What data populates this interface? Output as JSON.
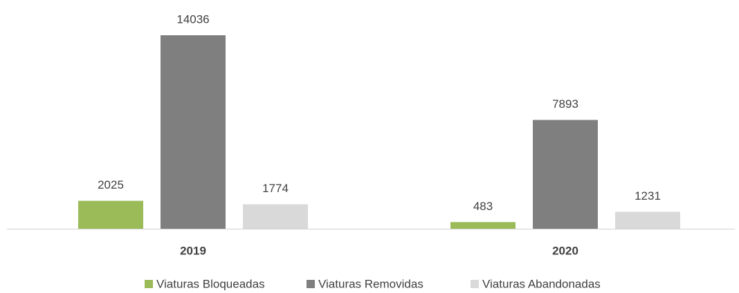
{
  "chart_data": {
    "type": "bar",
    "categories": [
      "2019",
      "2020"
    ],
    "series": [
      {
        "name": "Viaturas Bloqueadas",
        "color": "#9bbb59",
        "values": [
          2025,
          483
        ]
      },
      {
        "name": "Viaturas Removidas",
        "color": "#7f7f7f",
        "values": [
          14036,
          7893
        ]
      },
      {
        "name": "Viaturas Abandonadas",
        "color": "#d9d9d9",
        "values": [
          1774,
          1231
        ]
      }
    ],
    "legend": "bottom"
  }
}
